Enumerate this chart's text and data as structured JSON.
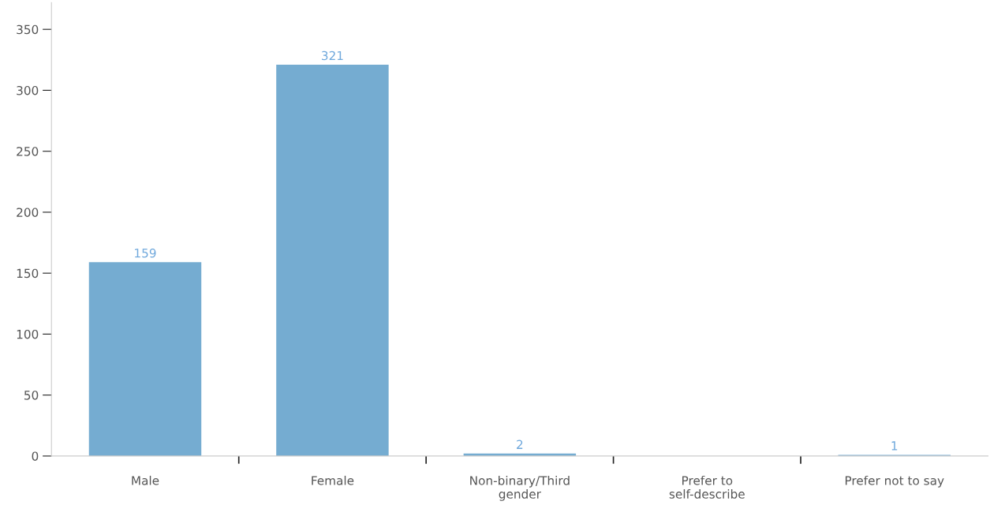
{
  "chart_data": {
    "type": "bar",
    "categories": [
      "Male",
      "Female",
      "Non-binary/Third\ngender",
      "Prefer to\nself-describe",
      "Prefer not to say"
    ],
    "values": [
      159,
      321,
      2,
      0,
      1
    ],
    "value_labels": [
      "159",
      "321",
      "2",
      null,
      "1"
    ],
    "color": "#75acd1",
    "ylim": [
      0,
      372
    ],
    "yticks": [
      0,
      50,
      100,
      150,
      200,
      250,
      300,
      350
    ],
    "grid": false,
    "legend": false
  }
}
